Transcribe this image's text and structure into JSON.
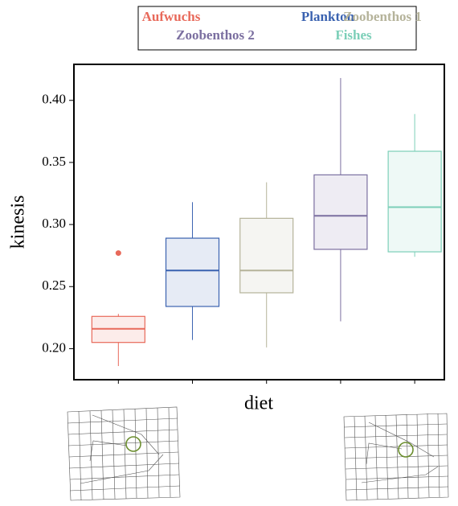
{
  "chart_data": {
    "type": "box",
    "x_label": "diet",
    "y_label": "kinesis",
    "ylim": [
      0.175,
      0.429
    ],
    "yticks": [
      {
        "value": 0.2,
        "label": "0.20"
      },
      {
        "value": 0.25,
        "label": "0.25"
      },
      {
        "value": 0.3,
        "label": "0.30"
      },
      {
        "value": 0.35,
        "label": "0.35"
      },
      {
        "value": 0.4,
        "label": "0.40"
      }
    ],
    "categories": [
      null,
      null,
      null,
      null,
      null
    ],
    "series": [
      {
        "name": "Aufwuchs",
        "color": "#e8695a",
        "min": 0.186,
        "q1": 0.205,
        "median": 0.216,
        "q3": 0.226,
        "max": 0.228,
        "outliers": [
          0.277
        ]
      },
      {
        "name": "Plankton",
        "color": "#3a62b0",
        "min": 0.207,
        "q1": 0.234,
        "median": 0.263,
        "q3": 0.289,
        "max": 0.318,
        "outliers": []
      },
      {
        "name": "Zoobenthos 1",
        "color": "#b5b39a",
        "min": 0.201,
        "q1": 0.245,
        "median": 0.263,
        "q3": 0.305,
        "max": 0.334,
        "outliers": []
      },
      {
        "name": "Zoobenthos 2",
        "color": "#7b6fa0",
        "min": 0.222,
        "q1": 0.28,
        "median": 0.307,
        "q3": 0.34,
        "max": 0.418,
        "outliers": []
      },
      {
        "name": "Fishes",
        "color": "#7ccfb8",
        "min": 0.274,
        "q1": 0.278,
        "median": 0.314,
        "q3": 0.359,
        "max": 0.389,
        "outliers": []
      }
    ]
  }
}
